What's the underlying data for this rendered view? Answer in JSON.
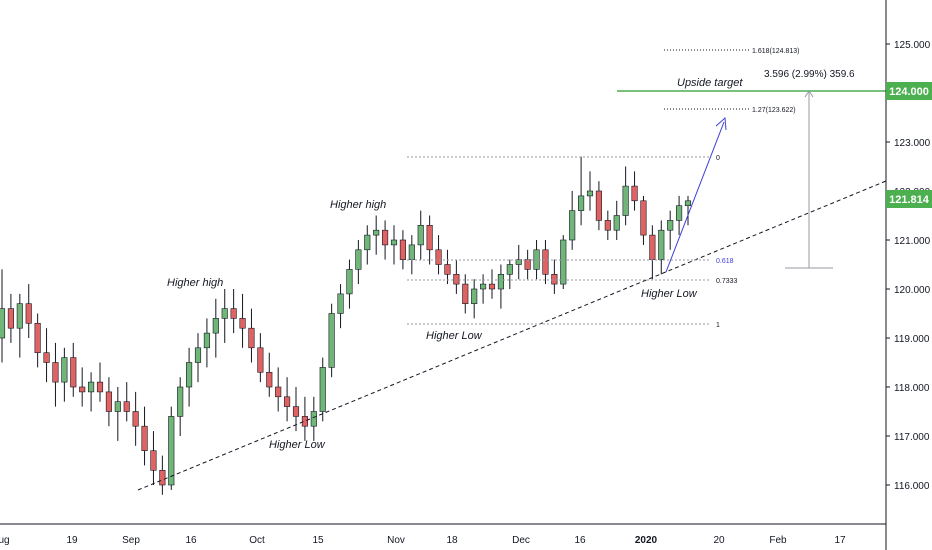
{
  "chart_data": {
    "type": "candlestick",
    "colors": {
      "up": "#70b679",
      "down": "#e06363",
      "target_line": "#4caf50",
      "projection": "#3f3fd8",
      "price_label": "#4caf50"
    },
    "y_axis": {
      "ticks": [
        "116.000",
        "117.000",
        "118.000",
        "119.000",
        "120.000",
        "121.000",
        "122.000",
        "123.000",
        "124.000",
        "125.000"
      ],
      "range": [
        115.1,
        125.6
      ]
    },
    "x_axis": {
      "ticks": [
        "ug",
        "19",
        "Sep",
        "16",
        "Oct",
        "15",
        "Nov",
        "18",
        "Dec",
        "16",
        "2020",
        "20",
        "Feb",
        "17"
      ]
    },
    "price_labels": {
      "target": "124.000",
      "current": "121.814"
    },
    "annotations": {
      "higher_high_1": "Higher high",
      "higher_high_2": "Higher high",
      "higher_low_1": "Higher Low",
      "higher_low_2": "Higher Low",
      "higher_low_3": "Higher Low",
      "upside_target": "Upside target",
      "measure": "3.596 (2.99%) 359.6"
    },
    "fib_levels": {
      "ext_1618": "1.618(124.813)",
      "ext_127": "1.27(123.622)",
      "level_0": "0",
      "level_0618": "0.618",
      "level_07333": "0.7333",
      "level_1": "1"
    },
    "ohlc": [
      [
        119.0,
        120.4,
        118.5,
        119.6
      ],
      [
        119.6,
        119.9,
        118.9,
        119.2
      ],
      [
        119.2,
        119.9,
        118.6,
        119.7
      ],
      [
        119.7,
        120.1,
        119.0,
        119.3
      ],
      [
        119.3,
        119.5,
        118.4,
        118.7
      ],
      [
        118.7,
        119.2,
        118.1,
        118.5
      ],
      [
        118.5,
        118.9,
        117.6,
        118.1
      ],
      [
        118.1,
        118.8,
        117.7,
        118.6
      ],
      [
        118.6,
        118.9,
        117.8,
        118.0
      ],
      [
        118.0,
        118.4,
        117.6,
        117.9
      ],
      [
        117.9,
        118.3,
        117.5,
        118.1
      ],
      [
        118.1,
        118.5,
        117.7,
        117.9
      ],
      [
        117.9,
        118.2,
        117.2,
        117.5
      ],
      [
        117.5,
        118.0,
        116.9,
        117.7
      ],
      [
        117.7,
        118.1,
        117.3,
        117.5
      ],
      [
        117.5,
        117.9,
        116.8,
        117.2
      ],
      [
        117.2,
        117.6,
        116.4,
        116.7
      ],
      [
        116.7,
        117.1,
        116.0,
        116.3
      ],
      [
        116.3,
        116.6,
        115.8,
        116.0
      ],
      [
        116.0,
        117.6,
        115.9,
        117.4
      ],
      [
        117.4,
        118.2,
        117.0,
        118.0
      ],
      [
        118.0,
        118.8,
        117.6,
        118.5
      ],
      [
        118.5,
        119.1,
        118.1,
        118.8
      ],
      [
        118.8,
        119.4,
        118.4,
        119.1
      ],
      [
        119.1,
        119.8,
        118.6,
        119.4
      ],
      [
        119.4,
        120.0,
        118.9,
        119.6
      ],
      [
        119.6,
        120.0,
        119.1,
        119.4
      ],
      [
        119.4,
        119.9,
        118.8,
        119.2
      ],
      [
        119.2,
        119.6,
        118.5,
        118.8
      ],
      [
        118.8,
        119.1,
        118.1,
        118.3
      ],
      [
        118.3,
        118.7,
        117.8,
        118.0
      ],
      [
        118.0,
        118.4,
        117.5,
        117.8
      ],
      [
        117.8,
        118.2,
        117.3,
        117.6
      ],
      [
        117.6,
        118.0,
        117.1,
        117.4
      ],
      [
        117.4,
        117.8,
        116.9,
        117.2
      ],
      [
        117.2,
        117.8,
        116.9,
        117.5
      ],
      [
        117.5,
        118.6,
        117.3,
        118.4
      ],
      [
        118.4,
        119.7,
        118.2,
        119.5
      ],
      [
        119.5,
        120.1,
        119.2,
        119.9
      ],
      [
        119.9,
        120.6,
        119.6,
        120.4
      ],
      [
        120.4,
        121.0,
        120.1,
        120.8
      ],
      [
        120.8,
        121.3,
        120.5,
        121.1
      ],
      [
        121.1,
        121.5,
        120.7,
        121.2
      ],
      [
        121.2,
        121.4,
        120.6,
        120.9
      ],
      [
        120.9,
        121.3,
        120.5,
        121.0
      ],
      [
        121.0,
        121.2,
        120.4,
        120.6
      ],
      [
        120.6,
        121.1,
        120.3,
        120.9
      ],
      [
        120.9,
        121.6,
        120.6,
        121.3
      ],
      [
        121.3,
        121.5,
        120.5,
        120.8
      ],
      [
        120.8,
        121.1,
        120.3,
        120.5
      ],
      [
        120.5,
        120.8,
        120.1,
        120.3
      ],
      [
        120.3,
        120.6,
        119.9,
        120.1
      ],
      [
        120.1,
        120.3,
        119.5,
        119.7
      ],
      [
        119.7,
        120.2,
        119.4,
        120.0
      ],
      [
        120.0,
        120.3,
        119.7,
        120.1
      ],
      [
        120.1,
        120.4,
        119.8,
        120.0
      ],
      [
        120.0,
        120.5,
        119.6,
        120.3
      ],
      [
        120.3,
        120.6,
        120.0,
        120.5
      ],
      [
        120.5,
        120.9,
        120.2,
        120.6
      ],
      [
        120.6,
        120.8,
        120.2,
        120.4
      ],
      [
        120.4,
        121.0,
        120.2,
        120.8
      ],
      [
        120.8,
        121.0,
        120.1,
        120.3
      ],
      [
        120.3,
        120.6,
        119.9,
        120.1
      ],
      [
        120.1,
        121.1,
        120.0,
        121.0
      ],
      [
        121.0,
        122.0,
        120.8,
        121.6
      ],
      [
        121.6,
        122.7,
        121.3,
        121.9
      ],
      [
        121.9,
        122.4,
        121.6,
        122.0
      ],
      [
        122.0,
        122.2,
        121.2,
        121.4
      ],
      [
        121.4,
        121.6,
        121.0,
        121.2
      ],
      [
        121.2,
        121.8,
        121.0,
        121.5
      ],
      [
        121.5,
        122.5,
        121.3,
        122.1
      ],
      [
        122.1,
        122.4,
        121.6,
        121.8
      ],
      [
        121.8,
        121.9,
        120.9,
        121.1
      ],
      [
        121.1,
        121.3,
        120.2,
        120.6
      ],
      [
        120.6,
        121.4,
        120.3,
        121.2
      ],
      [
        121.2,
        121.6,
        120.8,
        121.4
      ],
      [
        121.4,
        121.9,
        121.1,
        121.7
      ],
      [
        121.7,
        121.9,
        121.3,
        121.8
      ]
    ]
  }
}
